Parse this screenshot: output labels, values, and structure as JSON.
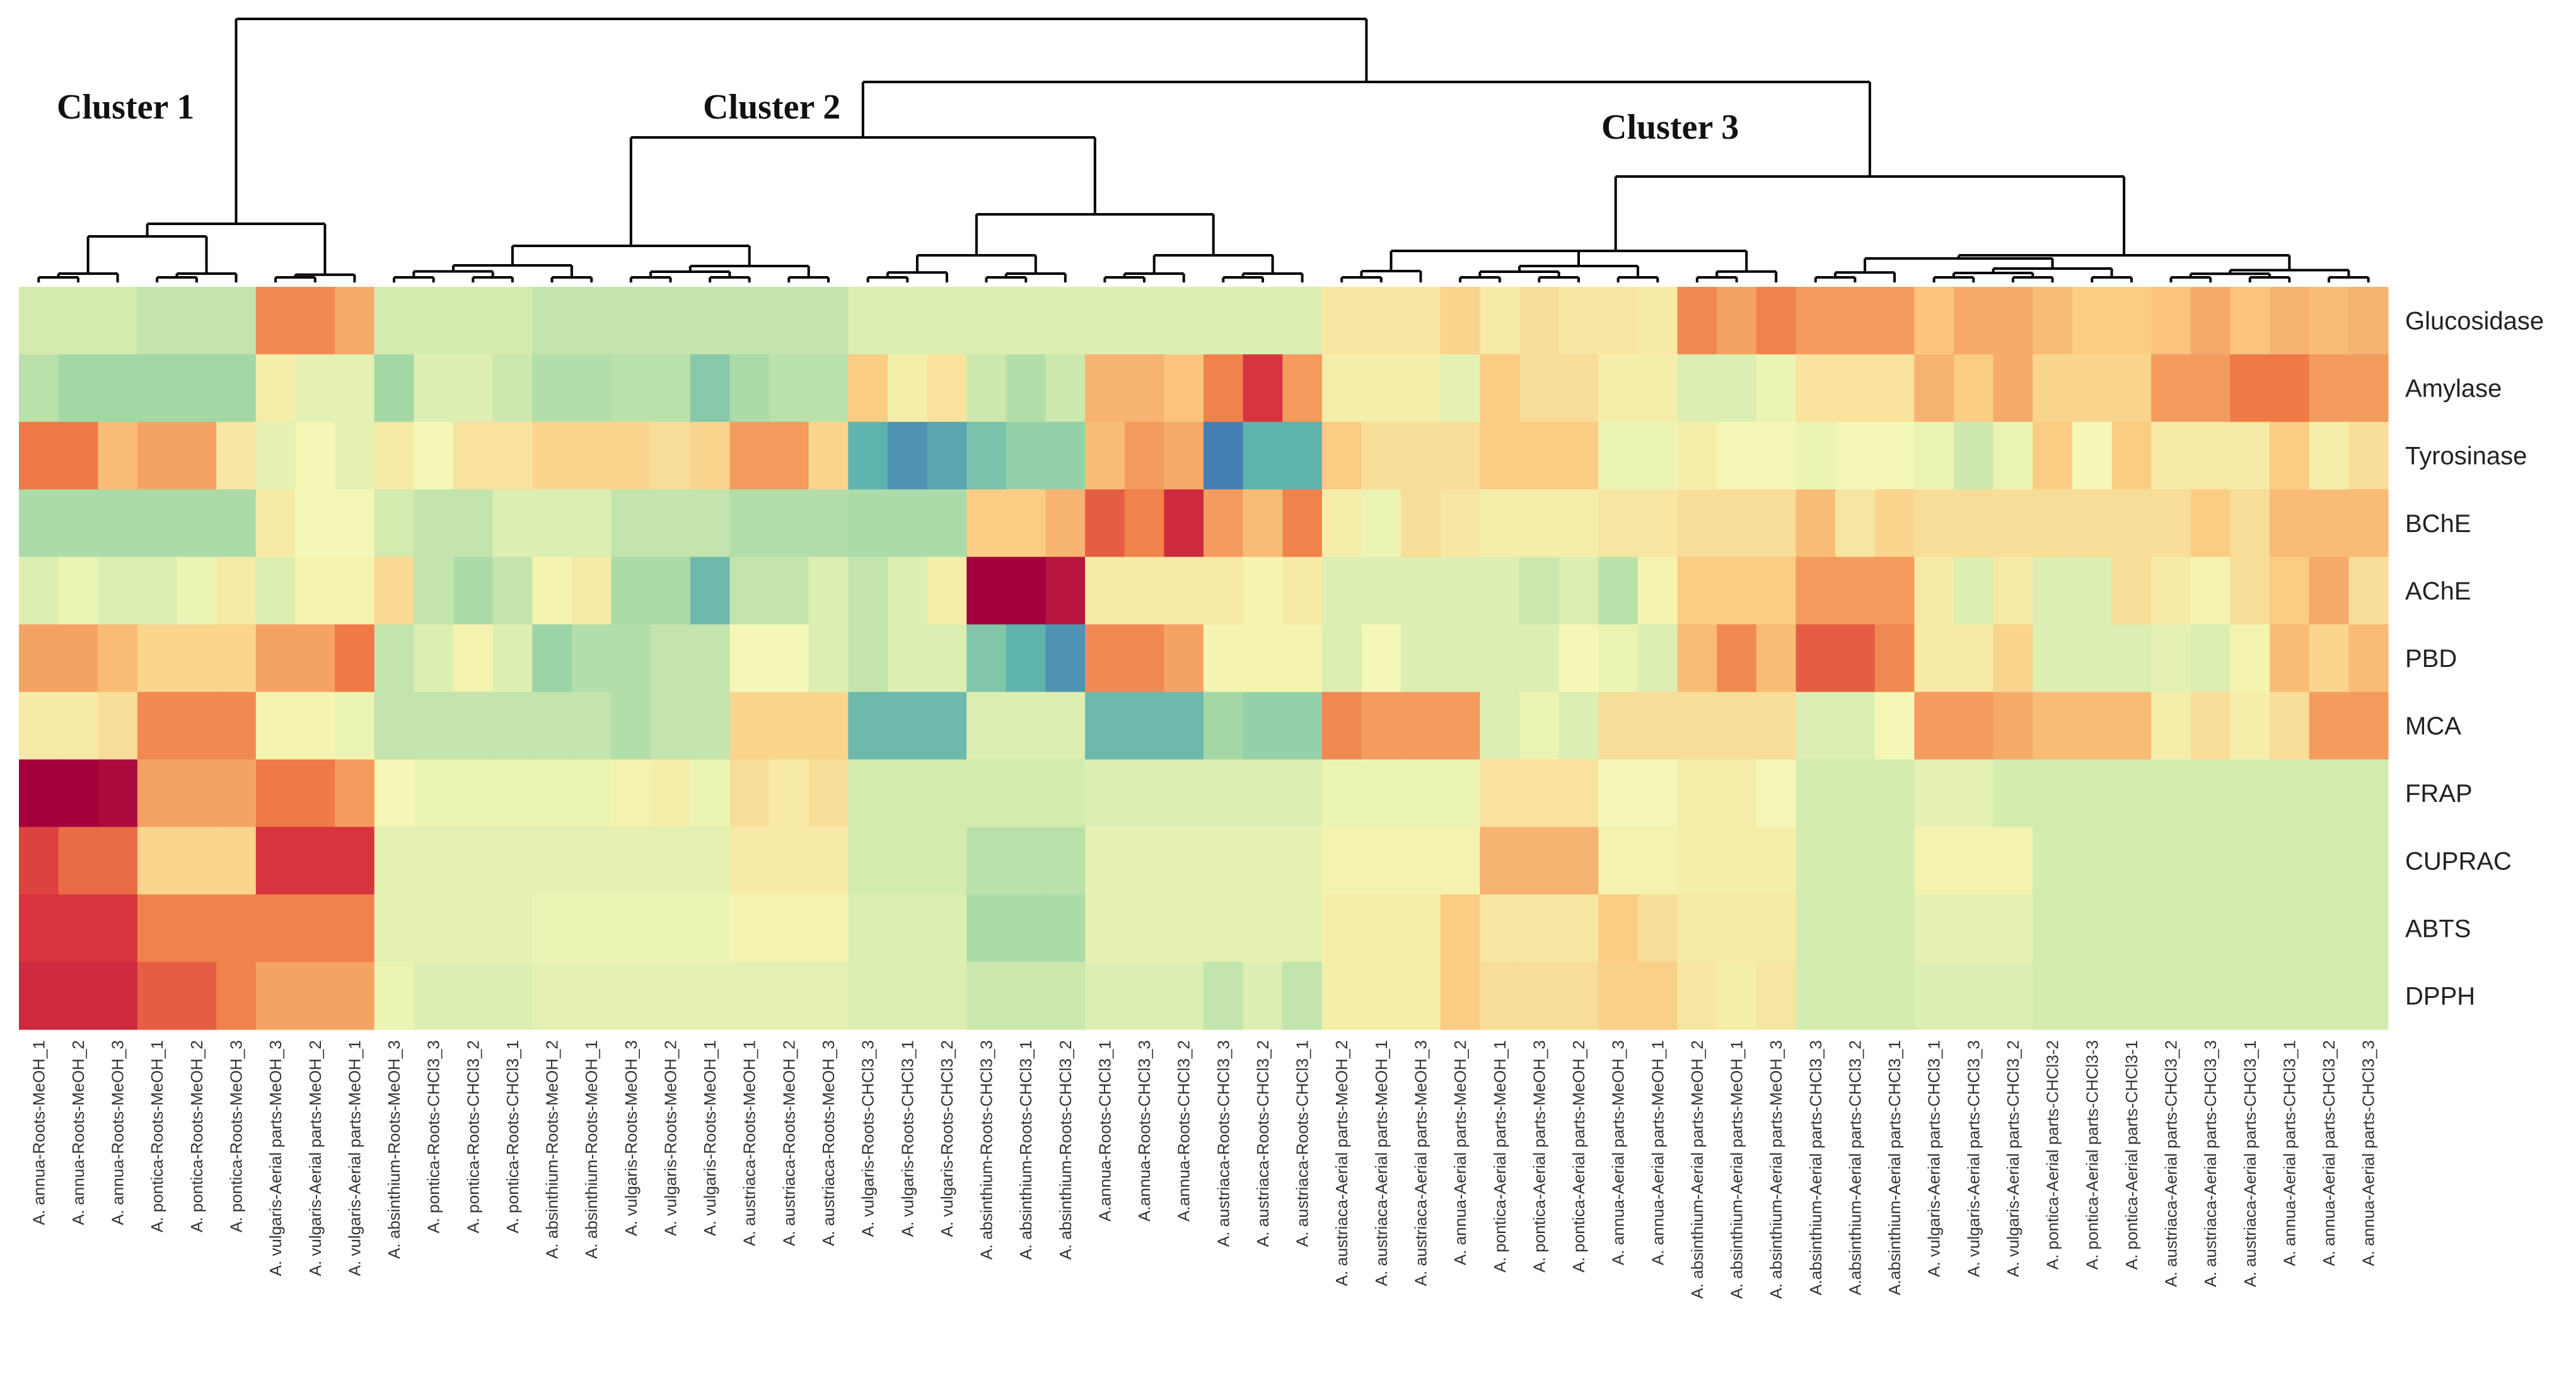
{
  "chart_data": {
    "type": "heatmap",
    "title": "",
    "clusters": [
      "Cluster 1",
      "Cluster 2",
      "Cluster 3"
    ],
    "rows": [
      "Glucosidase",
      "Amylase",
      "Tyrosinase",
      "BChE",
      "AChE",
      "PBD",
      "MCA",
      "FRAP",
      "CUPRAC",
      "ABTS",
      "DPPH"
    ],
    "columns": [
      "A. annua-Roots-MeOH_1",
      "A. annua-Roots-MeOH_2",
      "A. annua-Roots-MeOH_3",
      "A. pontica-Roots-MeOH_1",
      "A. pontica-Roots-MeOH_2",
      "A. pontica-Roots-MeOH_3",
      "A. vulgaris-Aerial parts-MeOH_3",
      "A. vulgaris-Aerial parts-MeOH_2",
      "A. vulgaris-Aerial parts-MeOH_1",
      "A. absinthium-Roots-MeOH_3",
      "A. pontica-Roots-CHCl3_3",
      "A. pontica-Roots-CHCl3_2",
      "A. pontica-Roots-CHCl3_1",
      "A. absinthium-Roots-MeOH_2",
      "A. absinthium-Roots-MeOH_1",
      "A. vulgaris-Roots-MeOH_3",
      "A. vulgaris-Roots-MeOH_2",
      "A. vulgaris-Roots-MeOH_1",
      "A. austriaca-Roots-MeOH_1",
      "A. austriaca-Roots-MeOH_2",
      "A. austriaca-Roots-MeOH_3",
      "A. vulgaris-Roots-CHCl3_3",
      "A. vulgaris-Roots-CHCl3_1",
      "A. vulgaris-Roots-CHCl3_2",
      "A. absinthium-Roots-CHCl3_3",
      "A. absinthium-Roots-CHCl3_1",
      "A. absinthium-Roots-CHCl3_2",
      "A.annua-Roots-CHCl3_1",
      "A.annua-Roots-CHCl3_3",
      "A.annua-Roots-CHCl3_2",
      "A. austriaca-Roots-CHCl3_3",
      "A. austriaca-Roots-CHCl3_2",
      "A. austriaca-Roots-CHCl3_1",
      "A. austriaca-Aerial parts-MeOH_2",
      "A. austriaca-Aerial parts-MeOH_1",
      "A. austriaca-Aerial parts-MeOH_3",
      "A. annua-Aerial parts-MeOH_2",
      "A. pontica-Aerial parts-MeOH_1",
      "A. pontica-Aerial parts-MeOH_3",
      "A. pontica-Aerial parts-MeOH_2",
      "A. annua-Aerial parts-MeOH_3",
      "A. annua-Aerial parts-MeOH_1",
      "A. absinthium-Aerial parts-MeOH_2",
      "A. absinthium-Aerial parts-MeOH_1",
      "A. absinthium-Aerial parts-MeOH_3",
      "A.absinthium-Aerial parts-CHCl3_3",
      "A.absinthium-Aerial parts-CHCl3_2",
      "A.absinthium-Aerial parts-CHCl3_1",
      "A. vulgaris-Aerial parts-CHCl3_1",
      "A. vulgaris-Aerial parts-CHCl3_3",
      "A. vulgaris-Aerial parts-CHCl3_2",
      "A. pontica-Aerial parts-CHCl3-2",
      "A. pontica-Aerial parts-CHCl3-3",
      "A. pontica-Aerial parts-CHCl3-1",
      "A. austriaca-Aerial parts-CHCl3_2",
      "A. austriaca-Aerial parts-CHCl3_3",
      "A. austriaca-Aerial parts-CHCl3_1",
      "A. annua-Aerial parts-CHCl3_1",
      "A. annua-Aerial parts-CHCl3_2",
      "A. annua-Aerial parts-CHCl3_3"
    ],
    "color_scale": {
      "range": [
        -3,
        3
      ],
      "stops": [
        {
          "value": -3,
          "color": "#3f72b5"
        },
        {
          "value": -2,
          "color": "#5fb3ae"
        },
        {
          "value": -1,
          "color": "#a3d8a6"
        },
        {
          "value": 0,
          "color": "#f4f7b5"
        },
        {
          "value": 1,
          "color": "#fbcc84"
        },
        {
          "value": 2,
          "color": "#ef7a45"
        },
        {
          "value": 2.5,
          "color": "#d7343f"
        },
        {
          "value": 3,
          "color": "#a3003e"
        }
      ]
    },
    "values": [
      [
        -0.4,
        -0.4,
        -0.4,
        -0.6,
        -0.6,
        -0.6,
        1.8,
        1.8,
        1.4,
        -0.4,
        -0.4,
        -0.4,
        -0.4,
        -0.6,
        -0.6,
        -0.6,
        -0.6,
        -0.6,
        -0.6,
        -0.6,
        -0.6,
        -0.3,
        -0.3,
        -0.3,
        -0.3,
        -0.3,
        -0.3,
        -0.3,
        -0.3,
        -0.3,
        -0.3,
        -0.3,
        -0.3,
        0.4,
        0.4,
        0.4,
        0.8,
        0.3,
        0.6,
        0.4,
        0.4,
        0.3,
        1.8,
        1.5,
        1.9,
        1.6,
        1.6,
        1.6,
        1.1,
        1.4,
        1.4,
        1.2,
        1.0,
        1.0,
        1.1,
        1.4,
        1.1,
        1.3,
        1.2,
        1.3
      ],
      [
        -0.7,
        -1.0,
        -1.0,
        -1.0,
        -1.0,
        -1.0,
        0.2,
        -0.2,
        -0.2,
        -1.0,
        -0.3,
        -0.3,
        -0.5,
        -0.8,
        -0.8,
        -0.7,
        -0.7,
        -1.4,
        -0.9,
        -0.7,
        -0.7,
        1.0,
        0.2,
        0.5,
        -0.5,
        -0.8,
        -0.5,
        1.3,
        1.3,
        1.1,
        1.9,
        2.5,
        1.6,
        0.2,
        0.2,
        0.2,
        -0.2,
        1.0,
        0.6,
        0.6,
        0.2,
        0.2,
        -0.3,
        -0.3,
        -0.1,
        0.5,
        0.5,
        0.5,
        1.3,
        1.0,
        1.4,
        0.8,
        0.8,
        0.8,
        1.6,
        1.6,
        2.0,
        2.0,
        1.6,
        1.6
      ],
      [
        2.0,
        2.0,
        1.2,
        1.5,
        1.5,
        0.4,
        -0.2,
        0.0,
        -0.2,
        0.3,
        0.0,
        0.5,
        0.5,
        0.8,
        0.8,
        0.8,
        0.6,
        0.8,
        1.6,
        1.6,
        0.8,
        -2.0,
        -2.5,
        -2.2,
        -1.6,
        -1.2,
        -1.2,
        1.2,
        1.6,
        1.4,
        -2.8,
        -2.0,
        -2.0,
        1.0,
        0.6,
        0.6,
        0.6,
        1.0,
        1.0,
        1.0,
        -0.1,
        -0.1,
        0.2,
        0.0,
        0.0,
        -0.1,
        0.0,
        0.0,
        -0.1,
        -0.5,
        -0.1,
        1.0,
        0.0,
        1.0,
        0.3,
        0.3,
        0.3,
        1.0,
        0.2,
        0.6
      ],
      [
        -0.9,
        -0.9,
        -0.9,
        -0.9,
        -0.9,
        -0.9,
        0.3,
        0.0,
        0.0,
        -0.4,
        -0.6,
        -0.6,
        -0.3,
        -0.3,
        -0.3,
        -0.6,
        -0.6,
        -0.6,
        -0.8,
        -0.8,
        -0.8,
        -0.9,
        -0.9,
        -0.9,
        1.0,
        1.0,
        1.3,
        2.2,
        1.9,
        2.6,
        1.6,
        1.2,
        1.9,
        0.2,
        -0.1,
        0.6,
        0.4,
        0.2,
        0.2,
        0.2,
        0.4,
        0.4,
        0.6,
        0.6,
        0.6,
        1.2,
        0.4,
        0.8,
        0.6,
        0.6,
        0.6,
        0.6,
        0.6,
        0.6,
        0.6,
        1.0,
        0.6,
        1.2,
        1.2,
        1.2
      ],
      [
        -0.3,
        -0.1,
        -0.3,
        -0.3,
        -0.1,
        0.3,
        -0.3,
        0.1,
        0.1,
        0.7,
        -0.6,
        -0.9,
        -0.6,
        0.1,
        0.3,
        -0.9,
        -0.9,
        -1.8,
        -0.6,
        -0.6,
        -0.3,
        -0.6,
        -0.3,
        0.2,
        3.0,
        3.0,
        2.8,
        0.3,
        0.3,
        0.3,
        0.3,
        0.1,
        0.3,
        -0.3,
        -0.3,
        -0.3,
        -0.3,
        -0.3,
        -0.5,
        -0.3,
        -0.7,
        0.1,
        1.0,
        1.0,
        1.0,
        1.6,
        1.6,
        1.6,
        0.3,
        -0.3,
        0.3,
        -0.3,
        -0.3,
        0.6,
        0.3,
        0.1,
        0.6,
        1.0,
        1.4,
        0.6
      ],
      [
        1.5,
        1.5,
        1.2,
        0.8,
        0.8,
        0.8,
        1.5,
        1.5,
        2.0,
        -0.6,
        -0.3,
        0.1,
        -0.3,
        -1.1,
        -0.8,
        -0.8,
        -0.6,
        -0.6,
        0.0,
        0.0,
        -0.3,
        -0.6,
        -0.3,
        -0.3,
        -1.5,
        -2.0,
        -2.5,
        1.8,
        1.8,
        1.5,
        0.1,
        0.1,
        0.1,
        -0.3,
        0.0,
        -0.3,
        -0.3,
        -0.3,
        -0.3,
        0.0,
        -0.1,
        -0.3,
        1.2,
        1.8,
        1.2,
        2.2,
        2.2,
        1.8,
        0.3,
        0.3,
        0.8,
        -0.3,
        -0.3,
        -0.3,
        -0.2,
        -0.3,
        0.1,
        1.2,
        0.8,
        1.2
      ],
      [
        0.3,
        0.3,
        0.6,
        1.8,
        1.8,
        1.8,
        0.1,
        0.1,
        -0.1,
        -0.6,
        -0.6,
        -0.6,
        -0.6,
        -0.6,
        -0.6,
        -0.8,
        -0.6,
        -0.6,
        0.8,
        0.8,
        0.8,
        -1.8,
        -1.8,
        -1.8,
        -0.3,
        -0.3,
        -0.3,
        -1.8,
        -1.8,
        -1.8,
        -1.0,
        -1.2,
        -1.2,
        1.8,
        1.6,
        1.6,
        1.6,
        -0.3,
        -0.1,
        -0.3,
        0.6,
        0.6,
        0.6,
        0.6,
        0.6,
        -0.3,
        -0.3,
        0.0,
        1.6,
        1.6,
        1.4,
        1.2,
        1.2,
        1.2,
        0.2,
        0.6,
        0.2,
        0.6,
        1.6,
        1.6
      ],
      [
        3.0,
        3.0,
        2.9,
        1.5,
        1.5,
        1.5,
        2.0,
        2.0,
        1.6,
        0.0,
        -0.1,
        -0.1,
        -0.1,
        -0.1,
        -0.1,
        0.1,
        0.2,
        -0.1,
        0.6,
        0.3,
        0.6,
        -0.4,
        -0.4,
        -0.4,
        -0.4,
        -0.4,
        -0.4,
        -0.3,
        -0.3,
        -0.3,
        -0.3,
        -0.3,
        -0.3,
        -0.1,
        -0.1,
        -0.1,
        -0.1,
        0.5,
        0.5,
        0.5,
        0.0,
        0.0,
        0.2,
        0.2,
        0.0,
        -0.4,
        -0.4,
        -0.4,
        -0.2,
        -0.2,
        -0.4,
        -0.4,
        -0.4,
        -0.4,
        -0.4,
        -0.4,
        -0.4,
        -0.4,
        -0.4,
        -0.4
      ],
      [
        2.4,
        2.1,
        2.1,
        0.8,
        0.8,
        0.8,
        2.5,
        2.5,
        2.5,
        -0.2,
        -0.2,
        -0.2,
        -0.2,
        -0.2,
        -0.2,
        -0.2,
        -0.2,
        -0.2,
        0.3,
        0.3,
        0.3,
        -0.4,
        -0.4,
        -0.4,
        -0.7,
        -0.7,
        -0.7,
        -0.2,
        -0.2,
        -0.2,
        -0.2,
        -0.2,
        -0.2,
        0.1,
        0.1,
        0.1,
        0.1,
        1.3,
        1.3,
        1.3,
        0.1,
        0.1,
        0.2,
        0.2,
        0.2,
        -0.4,
        -0.4,
        -0.4,
        0.1,
        0.1,
        0.1,
        -0.4,
        -0.4,
        -0.4,
        -0.4,
        -0.4,
        -0.4,
        -0.4,
        -0.4,
        -0.4
      ],
      [
        2.5,
        2.5,
        2.5,
        1.9,
        1.9,
        1.9,
        1.9,
        1.9,
        1.9,
        -0.2,
        -0.2,
        -0.2,
        -0.2,
        -0.1,
        -0.1,
        -0.1,
        -0.1,
        -0.1,
        0.1,
        0.1,
        0.1,
        -0.3,
        -0.3,
        -0.3,
        -0.9,
        -0.9,
        -0.9,
        -0.2,
        -0.2,
        -0.2,
        -0.2,
        -0.2,
        -0.2,
        0.2,
        0.2,
        0.2,
        1.0,
        0.4,
        0.4,
        0.4,
        1.0,
        0.6,
        0.3,
        0.3,
        0.3,
        -0.4,
        -0.4,
        -0.4,
        -0.2,
        -0.2,
        -0.2,
        -0.4,
        -0.4,
        -0.4,
        -0.4,
        -0.4,
        -0.4,
        -0.4,
        -0.4,
        -0.4
      ],
      [
        2.6,
        2.6,
        2.6,
        2.2,
        2.2,
        1.9,
        1.5,
        1.5,
        1.5,
        -0.1,
        -0.3,
        -0.3,
        -0.3,
        -0.2,
        -0.2,
        -0.2,
        -0.2,
        -0.2,
        -0.2,
        -0.2,
        -0.2,
        -0.3,
        -0.3,
        -0.3,
        -0.5,
        -0.5,
        -0.5,
        -0.3,
        -0.3,
        -0.3,
        -0.6,
        -0.3,
        -0.6,
        0.2,
        0.2,
        0.2,
        1.0,
        0.6,
        0.6,
        0.6,
        0.9,
        0.9,
        0.4,
        0.2,
        0.4,
        -0.4,
        -0.4,
        -0.4,
        -0.3,
        -0.3,
        -0.3,
        -0.4,
        -0.4,
        -0.4,
        -0.4,
        -0.4,
        -0.4,
        -0.4,
        -0.4,
        -0.4
      ]
    ]
  }
}
